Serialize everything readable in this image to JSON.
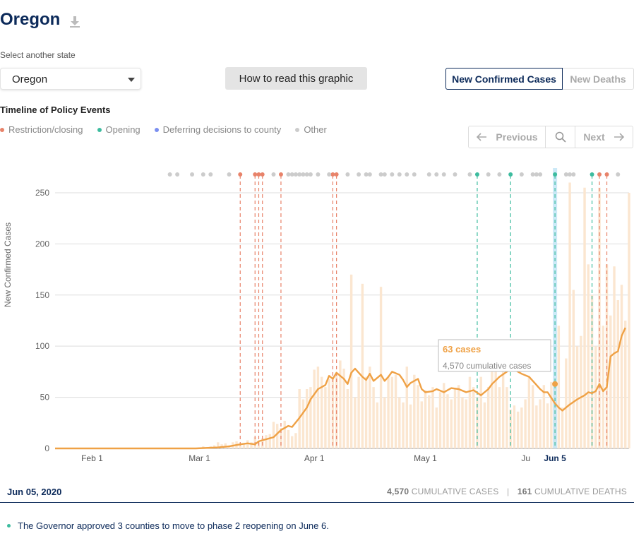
{
  "header": {
    "title": "Oregon",
    "download_icon": "download-icon"
  },
  "state_select": {
    "label": "Select another state",
    "value": "Oregon"
  },
  "how_to": {
    "label": "How to read this graphic"
  },
  "tabs": [
    {
      "label": "New Confirmed Cases",
      "active": true
    },
    {
      "label": "New Deaths",
      "active": false
    }
  ],
  "timeline": {
    "title": "Timeline of Policy Events",
    "legend": [
      {
        "label": "Restriction/closing",
        "color": "#e8836a"
      },
      {
        "label": "Opening",
        "color": "#3dbc9f"
      },
      {
        "label": "Deferring decisions to county",
        "color": "#7b8ff0"
      },
      {
        "label": "Other",
        "color": "#cccccc"
      }
    ]
  },
  "navigation": {
    "previous": "Previous",
    "next": "Next"
  },
  "tooltip": {
    "cases": "63 cases",
    "cumulative": "4,570 cumulative cases"
  },
  "footer": {
    "date": "Jun 05, 2020",
    "cumulative_cases_value": "4,570",
    "cumulative_cases_label": "CUMULATIVE CASES",
    "separator": "|",
    "cumulative_deaths_value": "161",
    "cumulative_deaths_label": "CUMULATIVE DEATHS"
  },
  "event": {
    "text": "The Governor approved 3 counties to move to phase 2 reopening on June 6."
  },
  "chart_data": {
    "type": "bar",
    "ylabel": "New Confirmed Cases",
    "ylim": [
      0,
      270
    ],
    "yticks": [
      0,
      50,
      100,
      150,
      200,
      250
    ],
    "x_start": "2020-01-22",
    "x_end": "2020-06-25",
    "xtick_dates": [
      "2020-02-01",
      "2020-03-01",
      "2020-04-01",
      "2020-05-01",
      "2020-06-01",
      "2020-06-05"
    ],
    "xtick_labels": [
      "Feb 1",
      "Mar 1",
      "Apr 1",
      "May 1",
      "Ju",
      "Jun 5"
    ],
    "selected_date": "2020-06-05",
    "series": [
      {
        "type": "bar",
        "color": "#fbe6d0",
        "points": [
          [
            "2020-03-01",
            1
          ],
          [
            "2020-03-02",
            2
          ],
          [
            "2020-03-03",
            1
          ],
          [
            "2020-03-04",
            2
          ],
          [
            "2020-03-05",
            3
          ],
          [
            "2020-03-06",
            6
          ],
          [
            "2020-03-07",
            4
          ],
          [
            "2020-03-08",
            5
          ],
          [
            "2020-03-09",
            3
          ],
          [
            "2020-03-10",
            6
          ],
          [
            "2020-03-11",
            7
          ],
          [
            "2020-03-12",
            5
          ],
          [
            "2020-03-13",
            4
          ],
          [
            "2020-03-14",
            8
          ],
          [
            "2020-03-15",
            6
          ],
          [
            "2020-03-16",
            11
          ],
          [
            "2020-03-17",
            7
          ],
          [
            "2020-03-18",
            10
          ],
          [
            "2020-03-19",
            13
          ],
          [
            "2020-03-20",
            14
          ],
          [
            "2020-03-21",
            26
          ],
          [
            "2020-03-22",
            24
          ],
          [
            "2020-03-23",
            20
          ],
          [
            "2020-03-24",
            27
          ],
          [
            "2020-03-25",
            18
          ],
          [
            "2020-03-26",
            12
          ],
          [
            "2020-03-27",
            15
          ],
          [
            "2020-03-28",
            58
          ],
          [
            "2020-03-29",
            48
          ],
          [
            "2020-03-30",
            58
          ],
          [
            "2020-03-31",
            60
          ],
          [
            "2020-04-01",
            77
          ],
          [
            "2020-04-02",
            80
          ],
          [
            "2020-04-03",
            70
          ],
          [
            "2020-04-04",
            60
          ],
          [
            "2020-04-05",
            68
          ],
          [
            "2020-04-06",
            70
          ],
          [
            "2020-04-07",
            72
          ],
          [
            "2020-04-08",
            86
          ],
          [
            "2020-04-09",
            78
          ],
          [
            "2020-04-10",
            58
          ],
          [
            "2020-04-11",
            170
          ],
          [
            "2020-04-12",
            50
          ],
          [
            "2020-04-13",
            70
          ],
          [
            "2020-04-14",
            161
          ],
          [
            "2020-04-15",
            70
          ],
          [
            "2020-04-16",
            80
          ],
          [
            "2020-04-17",
            60
          ],
          [
            "2020-04-18",
            45
          ],
          [
            "2020-04-19",
            158
          ],
          [
            "2020-04-20",
            50
          ],
          [
            "2020-04-21",
            70
          ],
          [
            "2020-04-22",
            70
          ],
          [
            "2020-04-23",
            72
          ],
          [
            "2020-04-24",
            50
          ],
          [
            "2020-04-25",
            45
          ],
          [
            "2020-04-26",
            80
          ],
          [
            "2020-04-27",
            43
          ],
          [
            "2020-04-28",
            72
          ],
          [
            "2020-04-29",
            62
          ],
          [
            "2020-04-30",
            46
          ],
          [
            "2020-05-01",
            57
          ],
          [
            "2020-05-02",
            52
          ],
          [
            "2020-05-03",
            60
          ],
          [
            "2020-05-04",
            40
          ],
          [
            "2020-05-05",
            55
          ],
          [
            "2020-05-06",
            64
          ],
          [
            "2020-05-07",
            53
          ],
          [
            "2020-05-08",
            48
          ],
          [
            "2020-05-09",
            58
          ],
          [
            "2020-05-10",
            62
          ],
          [
            "2020-05-11",
            50
          ],
          [
            "2020-05-12",
            48
          ],
          [
            "2020-05-13",
            70
          ],
          [
            "2020-05-14",
            60
          ],
          [
            "2020-05-15",
            50
          ],
          [
            "2020-05-16",
            70
          ],
          [
            "2020-05-17",
            45
          ],
          [
            "2020-05-18",
            60
          ],
          [
            "2020-05-19",
            75
          ],
          [
            "2020-05-20",
            100
          ],
          [
            "2020-05-21",
            60
          ],
          [
            "2020-05-22",
            75
          ],
          [
            "2020-05-23",
            60
          ],
          [
            "2020-05-24",
            38
          ],
          [
            "2020-05-25",
            42
          ],
          [
            "2020-05-26",
            36
          ],
          [
            "2020-05-27",
            40
          ],
          [
            "2020-05-28",
            48
          ],
          [
            "2020-05-29",
            70
          ],
          [
            "2020-05-30",
            62
          ],
          [
            "2020-05-31",
            42
          ],
          [
            "2020-06-01",
            48
          ],
          [
            "2020-06-02",
            62
          ],
          [
            "2020-06-03",
            44
          ],
          [
            "2020-06-04",
            65
          ],
          [
            "2020-06-05",
            63
          ],
          [
            "2020-06-06",
            120
          ],
          [
            "2020-06-07",
            40
          ],
          [
            "2020-06-08",
            88
          ],
          [
            "2020-06-09",
            260
          ],
          [
            "2020-06-10",
            155
          ],
          [
            "2020-06-11",
            100
          ],
          [
            "2020-06-12",
            110
          ],
          [
            "2020-06-13",
            255
          ],
          [
            "2020-06-14",
            180
          ],
          [
            "2020-06-15",
            150
          ],
          [
            "2020-06-16",
            100
          ],
          [
            "2020-06-17",
            255
          ],
          [
            "2020-06-18",
            120
          ],
          [
            "2020-06-19",
            180
          ],
          [
            "2020-06-20",
            130
          ],
          [
            "2020-06-21",
            178
          ],
          [
            "2020-06-22",
            145
          ],
          [
            "2020-06-23",
            160
          ],
          [
            "2020-06-24",
            125
          ],
          [
            "2020-06-25",
            250
          ]
        ]
      },
      {
        "type": "line",
        "color": "#efa145",
        "points": [
          [
            "2020-01-22",
            0
          ],
          [
            "2020-02-29",
            0
          ],
          [
            "2020-03-06",
            1
          ],
          [
            "2020-03-09",
            2
          ],
          [
            "2020-03-12",
            4
          ],
          [
            "2020-03-14",
            5
          ],
          [
            "2020-03-16",
            4
          ],
          [
            "2020-03-17",
            7
          ],
          [
            "2020-03-19",
            9
          ],
          [
            "2020-03-21",
            11
          ],
          [
            "2020-03-23",
            18
          ],
          [
            "2020-03-25",
            22
          ],
          [
            "2020-03-26",
            21
          ],
          [
            "2020-03-28",
            30
          ],
          [
            "2020-03-30",
            40
          ],
          [
            "2020-03-31",
            48
          ],
          [
            "2020-04-02",
            58
          ],
          [
            "2020-04-04",
            62
          ],
          [
            "2020-04-05",
            71
          ],
          [
            "2020-04-06",
            68
          ],
          [
            "2020-04-07",
            74
          ],
          [
            "2020-04-09",
            68
          ],
          [
            "2020-04-10",
            63
          ],
          [
            "2020-04-11",
            74
          ],
          [
            "2020-04-12",
            78
          ],
          [
            "2020-04-14",
            70
          ],
          [
            "2020-04-15",
            67
          ],
          [
            "2020-04-16",
            73
          ],
          [
            "2020-04-17",
            66
          ],
          [
            "2020-04-19",
            72
          ],
          [
            "2020-04-20",
            66
          ],
          [
            "2020-04-21",
            70
          ],
          [
            "2020-04-22",
            75
          ],
          [
            "2020-04-24",
            72
          ],
          [
            "2020-04-25",
            67
          ],
          [
            "2020-04-26",
            60
          ],
          [
            "2020-04-27",
            64
          ],
          [
            "2020-04-29",
            68
          ],
          [
            "2020-04-30",
            58
          ],
          [
            "2020-05-01",
            55
          ],
          [
            "2020-05-03",
            56
          ],
          [
            "2020-05-04",
            58
          ],
          [
            "2020-05-06",
            55
          ],
          [
            "2020-05-08",
            59
          ],
          [
            "2020-05-10",
            58
          ],
          [
            "2020-05-12",
            55
          ],
          [
            "2020-05-14",
            57
          ],
          [
            "2020-05-16",
            52
          ],
          [
            "2020-05-18",
            58
          ],
          [
            "2020-05-19",
            63
          ],
          [
            "2020-05-21",
            70
          ],
          [
            "2020-05-23",
            75
          ],
          [
            "2020-05-24",
            78
          ],
          [
            "2020-05-25",
            77
          ],
          [
            "2020-05-27",
            73
          ],
          [
            "2020-05-29",
            70
          ],
          [
            "2020-05-31",
            62
          ],
          [
            "2020-06-01",
            58
          ],
          [
            "2020-06-02",
            55
          ],
          [
            "2020-06-03",
            55
          ],
          [
            "2020-06-05",
            44
          ],
          [
            "2020-06-06",
            40
          ],
          [
            "2020-06-07",
            37
          ],
          [
            "2020-06-08",
            40
          ],
          [
            "2020-06-09",
            43
          ],
          [
            "2020-06-11",
            48
          ],
          [
            "2020-06-13",
            52
          ],
          [
            "2020-06-14",
            55
          ],
          [
            "2020-06-15",
            54
          ],
          [
            "2020-06-16",
            56
          ],
          [
            "2020-06-17",
            63
          ],
          [
            "2020-06-18",
            56
          ],
          [
            "2020-06-19",
            60
          ],
          [
            "2020-06-20",
            90
          ],
          [
            "2020-06-21",
            93
          ],
          [
            "2020-06-22",
            95
          ],
          [
            "2020-06-23",
            110
          ],
          [
            "2020-06-24",
            118
          ]
        ]
      }
    ],
    "event_markers": [
      [
        "2020-03-12",
        "restriction"
      ],
      [
        "2020-03-16",
        "restriction"
      ],
      [
        "2020-03-17",
        "restriction"
      ],
      [
        "2020-03-18",
        "restriction"
      ],
      [
        "2020-03-23",
        "restriction"
      ],
      [
        "2020-04-06",
        "restriction"
      ],
      [
        "2020-04-07",
        "restriction"
      ],
      [
        "2020-05-15",
        "opening"
      ],
      [
        "2020-05-24",
        "opening"
      ],
      [
        "2020-06-05",
        "opening"
      ],
      [
        "2020-06-15",
        "opening"
      ],
      [
        "2020-06-17",
        "restriction"
      ],
      [
        "2020-06-19",
        "restriction"
      ]
    ],
    "other_dot_dates": [
      "2020-02-22",
      "2020-02-24",
      "2020-02-28",
      "2020-03-02",
      "2020-03-04",
      "2020-03-09",
      "2020-03-21",
      "2020-03-25",
      "2020-03-26",
      "2020-03-27",
      "2020-03-28",
      "2020-03-29",
      "2020-03-30",
      "2020-03-31",
      "2020-04-02",
      "2020-04-05",
      "2020-04-10",
      "2020-04-13",
      "2020-04-15",
      "2020-04-16",
      "2020-04-19",
      "2020-04-20",
      "2020-04-22",
      "2020-04-24",
      "2020-04-26",
      "2020-04-28",
      "2020-05-02",
      "2020-05-04",
      "2020-05-06",
      "2020-05-09",
      "2020-05-13",
      "2020-05-18",
      "2020-05-21",
      "2020-05-27",
      "2020-05-30",
      "2020-05-31",
      "2020-06-01",
      "2020-06-08",
      "2020-06-09",
      "2020-06-10",
      "2020-06-22"
    ]
  }
}
